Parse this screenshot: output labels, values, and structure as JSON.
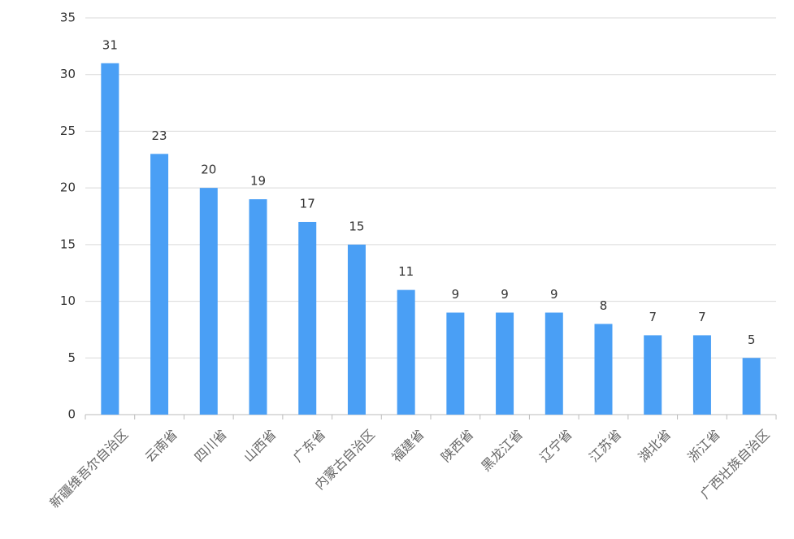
{
  "chart_data": {
    "type": "bar",
    "categories": [
      "新疆维吾尔自治区",
      "云南省",
      "四川省",
      "山西省",
      "广东省",
      "内蒙古自治区",
      "福建省",
      "陕西省",
      "黑龙江省",
      "辽宁省",
      "江苏省",
      "湖北省",
      "浙江省",
      "广西壮族自治区"
    ],
    "values": [
      31,
      23,
      20,
      19,
      17,
      15,
      11,
      9,
      9,
      9,
      8,
      7,
      7,
      5
    ],
    "color": "#4a9ff5",
    "ylim": [
      0,
      35
    ],
    "yticks": [
      0,
      5,
      10,
      15,
      20,
      25,
      30,
      35
    ],
    "grid": true
  }
}
